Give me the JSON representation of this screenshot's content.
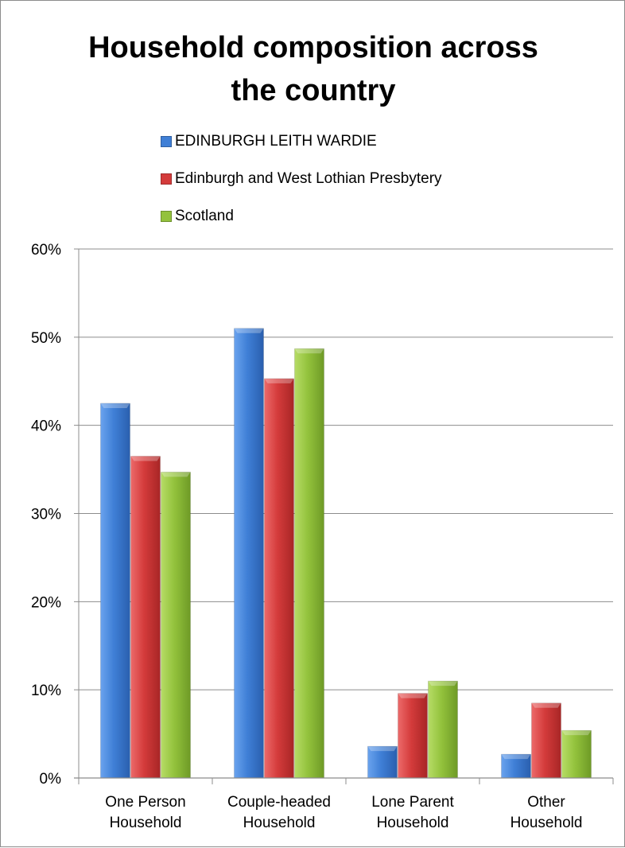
{
  "chart_data": {
    "type": "bar",
    "title_line1": "Household composition across",
    "title_line2": "the country",
    "categories": [
      [
        "One Person",
        "Household"
      ],
      [
        "Couple-headed",
        "Household"
      ],
      [
        "Lone Parent",
        "Household"
      ],
      [
        "Other",
        "Household"
      ]
    ],
    "series": [
      {
        "name": "EDINBURGH LEITH WARDIE",
        "color": "#3f7fd6",
        "values": [
          42.5,
          51.0,
          3.6,
          2.7
        ]
      },
      {
        "name": "Edinburgh and West Lothian Presbytery",
        "color": "#d43b3b",
        "values": [
          36.5,
          45.3,
          9.6,
          8.5
        ]
      },
      {
        "name": "Scotland",
        "color": "#93c23c",
        "values": [
          34.7,
          48.7,
          11.0,
          5.4
        ]
      }
    ],
    "ylim": [
      0,
      60
    ],
    "yticks": [
      "0%",
      "10%",
      "20%",
      "30%",
      "40%",
      "50%",
      "60%"
    ],
    "grid": true,
    "legend_position": "top"
  }
}
